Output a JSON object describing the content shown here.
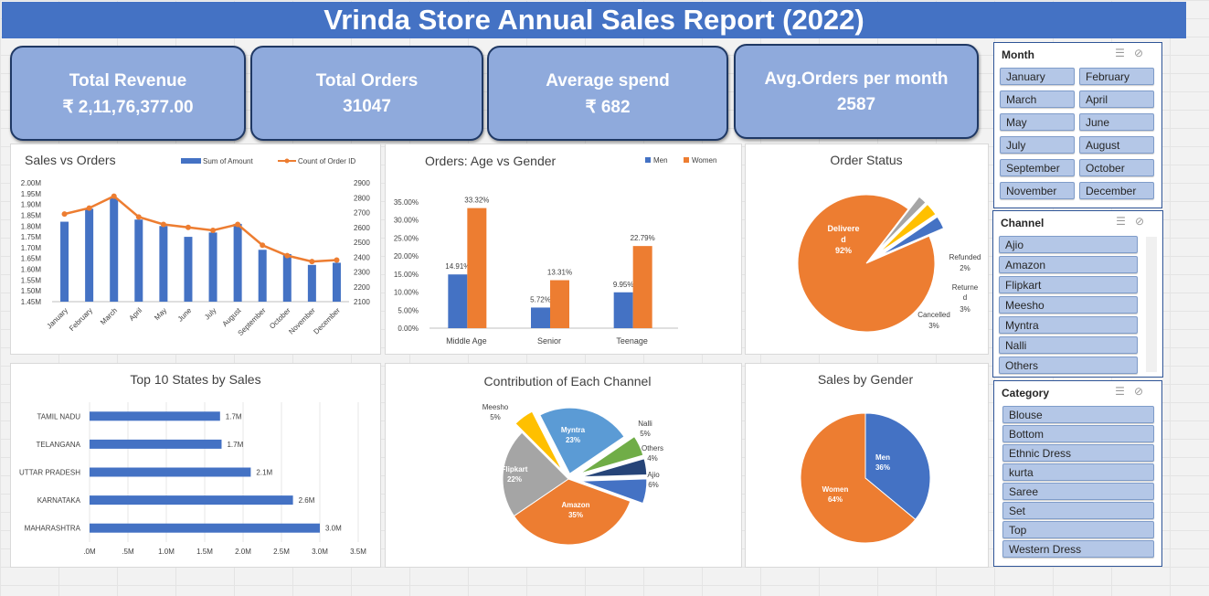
{
  "header": {
    "title": "Vrinda Store Annual Sales Report (2022)"
  },
  "kpis": [
    {
      "label": "Total Revenue",
      "value": "₹ 2,11,76,377.00"
    },
    {
      "label": "Total Orders",
      "value": "31047"
    },
    {
      "label": "Average spend",
      "value": "₹ 682"
    },
    {
      "label": "Avg.Orders per month",
      "value": "2587"
    }
  ],
  "colors": {
    "blue": "#4472c4",
    "orange": "#ed7d31",
    "gray": "#a5a5a5",
    "yellow": "#ffc000",
    "lightblue": "#5b9bd5",
    "green": "#70ad47",
    "navy": "#264478",
    "banner": "#4472c4",
    "kpi": "#8faadc"
  },
  "chart_data": [
    {
      "id": "sales-orders",
      "type": "bar+line",
      "title": "Sales vs Orders",
      "categories": [
        "January",
        "February",
        "March",
        "April",
        "May",
        "June",
        "July",
        "August",
        "September",
        "October",
        "November",
        "December"
      ],
      "series": [
        {
          "name": "Sum of Amount",
          "type": "bar",
          "axis": "left",
          "values": [
            1.82,
            1.88,
            1.93,
            1.83,
            1.8,
            1.75,
            1.77,
            1.81,
            1.69,
            1.67,
            1.62,
            1.63
          ]
        },
        {
          "name": "Count of Order ID",
          "type": "line",
          "axis": "right",
          "values": [
            2690,
            2730,
            2810,
            2670,
            2620,
            2600,
            2580,
            2620,
            2480,
            2410,
            2370,
            2380
          ]
        }
      ],
      "yleft_ticks": [
        "1.45M",
        "1.50M",
        "1.55M",
        "1.60M",
        "1.65M",
        "1.70M",
        "1.75M",
        "1.80M",
        "1.85M",
        "1.90M",
        "1.95M",
        "2.00M"
      ],
      "yleft_lim": [
        1.45,
        2.0
      ],
      "yright_ticks": [
        "2100",
        "2200",
        "2300",
        "2400",
        "2500",
        "2600",
        "2700",
        "2800",
        "2900"
      ],
      "yright_lim": [
        2100,
        2900
      ]
    },
    {
      "id": "age-gender",
      "type": "bar",
      "title": "Orders: Age vs Gender",
      "categories": [
        "Middle Age",
        "Senior",
        "Teenage"
      ],
      "series": [
        {
          "name": "Men",
          "values": [
            14.91,
            5.72,
            9.95
          ],
          "labels": [
            "14.91%",
            "5.72%",
            "9.95%"
          ]
        },
        {
          "name": "Women",
          "values": [
            33.32,
            13.31,
            22.79
          ],
          "labels": [
            "33.32%",
            "13.31%",
            "22.79%"
          ]
        }
      ],
      "yticks": [
        "0.00%",
        "5.00%",
        "10.00%",
        "15.00%",
        "20.00%",
        "25.00%",
        "30.00%",
        "35.00%"
      ],
      "ylim": [
        0,
        35
      ],
      "legend": "top-right"
    },
    {
      "id": "order-status",
      "type": "pie",
      "title": "Order Status",
      "slices": [
        {
          "name": "Delivered",
          "value": 92,
          "label": "92%"
        },
        {
          "name": "Refunded",
          "value": 2,
          "label": "2%"
        },
        {
          "name": "Returned",
          "value": 3,
          "label": "3%"
        },
        {
          "name": "Cancelled",
          "value": 3,
          "label": "3%"
        }
      ]
    },
    {
      "id": "top-states",
      "type": "bar",
      "orientation": "horizontal",
      "title": "Top 10 States by Sales",
      "categories": [
        "TAMIL NADU",
        "TELANGANA",
        "UTTAR PRADESH",
        "KARNATAKA",
        "MAHARASHTRA"
      ],
      "values": [
        1.7,
        1.72,
        2.1,
        2.65,
        3.0
      ],
      "labels": [
        "1.7M",
        "1.7M",
        "2.1M",
        "2.6M",
        "3.0M"
      ],
      "xticks": [
        ".0M",
        ".5M",
        "1.0M",
        "1.5M",
        "2.0M",
        "2.5M",
        "3.0M",
        "3.5M"
      ],
      "xlim": [
        0,
        3.5
      ]
    },
    {
      "id": "channel",
      "type": "pie",
      "title": "Contribution of Each Channel",
      "slices": [
        {
          "name": "Amazon",
          "value": 35,
          "label": "35%"
        },
        {
          "name": "Flipkart",
          "value": 22,
          "label": "22%"
        },
        {
          "name": "Meesho",
          "value": 5,
          "label": "5%"
        },
        {
          "name": "Myntra",
          "value": 23,
          "label": "23%"
        },
        {
          "name": "Nalli",
          "value": 5,
          "label": "5%"
        },
        {
          "name": "Others",
          "value": 4,
          "label": "4%"
        },
        {
          "name": "Ajio",
          "value": 6,
          "label": "6%"
        }
      ]
    },
    {
      "id": "gender",
      "type": "pie",
      "title": "Sales by Gender",
      "slices": [
        {
          "name": "Men",
          "value": 36,
          "label": "36%"
        },
        {
          "name": "Women",
          "value": 64,
          "label": "64%"
        }
      ]
    }
  ],
  "slicers": {
    "month": {
      "title": "Month",
      "items": [
        "January",
        "February",
        "March",
        "April",
        "May",
        "June",
        "July",
        "August",
        "September",
        "October",
        "November",
        "December"
      ]
    },
    "channel": {
      "title": "Channel",
      "items": [
        "Ajio",
        "Amazon",
        "Flipkart",
        "Meesho",
        "Myntra",
        "Nalli",
        "Others"
      ]
    },
    "category": {
      "title": "Category",
      "items": [
        "Blouse",
        "Bottom",
        "Ethnic Dress",
        "kurta",
        "Saree",
        "Set",
        "Top",
        "Western Dress"
      ]
    }
  }
}
